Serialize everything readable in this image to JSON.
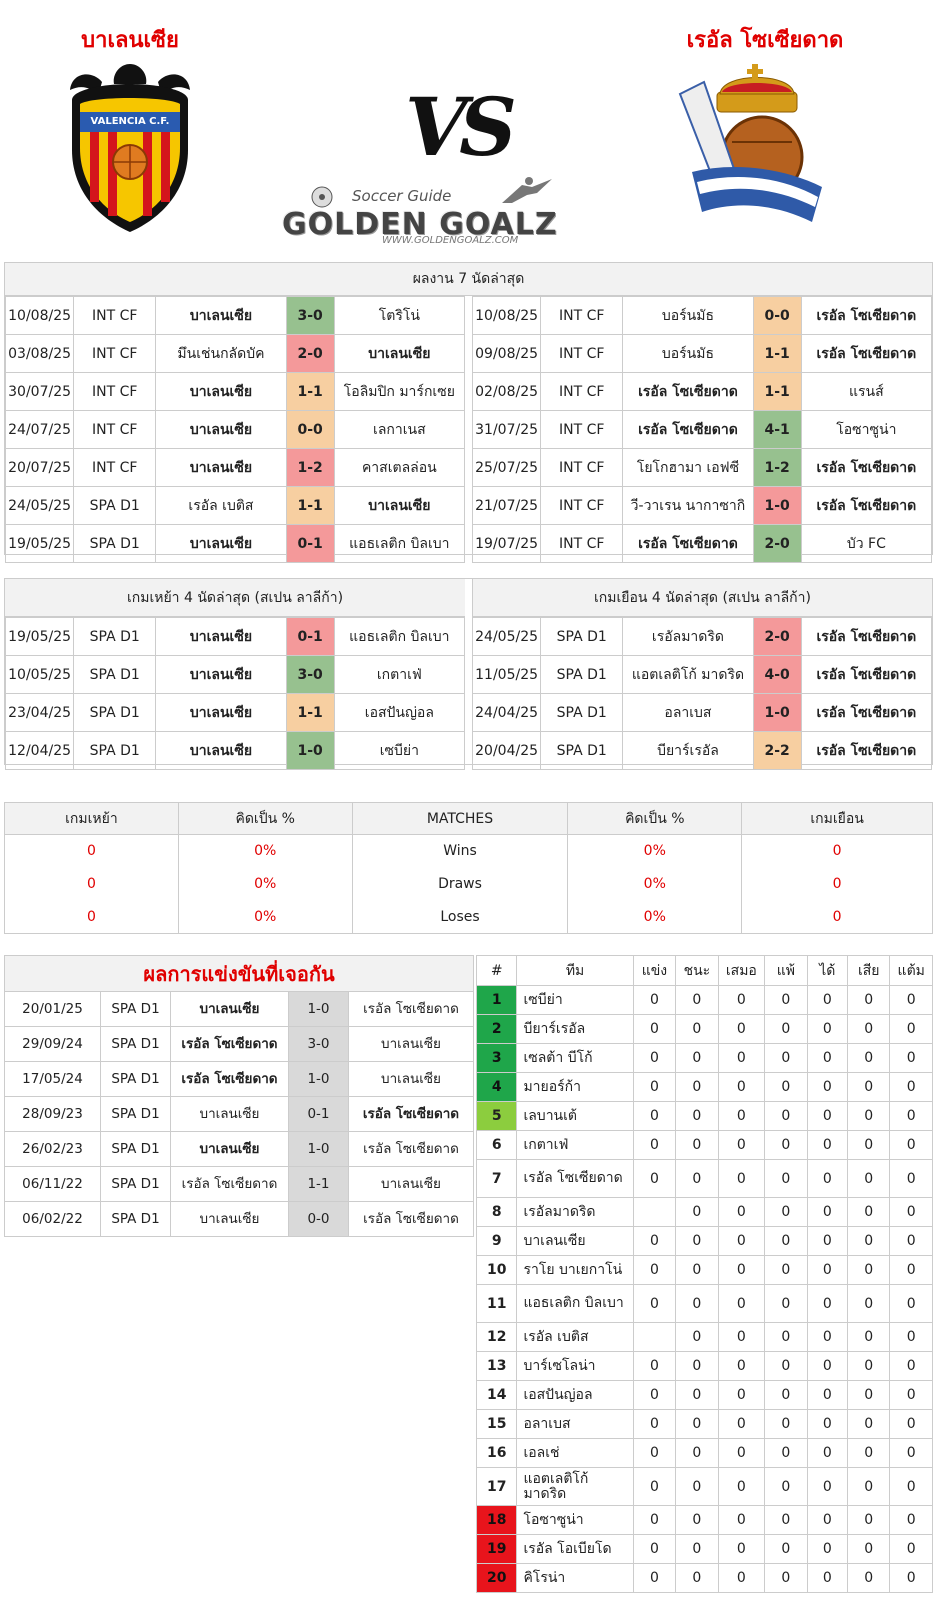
{
  "header": {
    "home_team": "บาเลนเซีย",
    "away_team": "เรอัล โซเซียดาด",
    "vs": "VS",
    "brand_tagline": "Soccer Guide",
    "brand_name": "GOLDEN GOALZ",
    "brand_url": "WWW.GOLDENGOALZ.COM",
    "home_crest_text": "VALENCIA C.F."
  },
  "last7": {
    "title": "ผลงาน 7 นัดล่าสุด",
    "home": [
      {
        "date": "10/08/25",
        "comp": "INT CF",
        "home": "บาเลนเซีย",
        "score": "3-0",
        "away": "โตริโน่",
        "res": "win",
        "bold": "home"
      },
      {
        "date": "03/08/25",
        "comp": "INT CF",
        "home": "มึนเช่นกลัดบัค",
        "score": "2-0",
        "away": "บาเลนเซีย",
        "res": "loss",
        "bold": "away"
      },
      {
        "date": "30/07/25",
        "comp": "INT CF",
        "home": "บาเลนเซีย",
        "score": "1-1",
        "away": "โอลิมปิก มาร์กเซย",
        "res": "draw",
        "bold": "home"
      },
      {
        "date": "24/07/25",
        "comp": "INT CF",
        "home": "บาเลนเซีย",
        "score": "0-0",
        "away": "เลกาเนส",
        "res": "draw",
        "bold": "home"
      },
      {
        "date": "20/07/25",
        "comp": "INT CF",
        "home": "บาเลนเซีย",
        "score": "1-2",
        "away": "คาสเตลล่อน",
        "res": "loss",
        "bold": "home"
      },
      {
        "date": "24/05/25",
        "comp": "SPA D1",
        "home": "เรอัล เบติส",
        "score": "1-1",
        "away": "บาเลนเซีย",
        "res": "draw",
        "bold": "away"
      },
      {
        "date": "19/05/25",
        "comp": "SPA D1",
        "home": "บาเลนเซีย",
        "score": "0-1",
        "away": "แอธเลติก บิลเบา",
        "res": "loss",
        "bold": "home"
      }
    ],
    "away": [
      {
        "date": "10/08/25",
        "comp": "INT CF",
        "home": "บอร์นมัธ",
        "score": "0-0",
        "away": "เรอัล โซเซียดาด",
        "res": "draw",
        "bold": "away"
      },
      {
        "date": "09/08/25",
        "comp": "INT CF",
        "home": "บอร์นมัธ",
        "score": "1-1",
        "away": "เรอัล โซเซียดาด",
        "res": "draw",
        "bold": "away"
      },
      {
        "date": "02/08/25",
        "comp": "INT CF",
        "home": "เรอัล โซเซียดาด",
        "score": "1-1",
        "away": "แรนส์",
        "res": "draw",
        "bold": "home"
      },
      {
        "date": "31/07/25",
        "comp": "INT CF",
        "home": "เรอัล โซเซียดาด",
        "score": "4-1",
        "away": "โอซาซูน่า",
        "res": "win",
        "bold": "home"
      },
      {
        "date": "25/07/25",
        "comp": "INT CF",
        "home": "โยโกฮามา เอฟซี",
        "score": "1-2",
        "away": "เรอัล โซเซียดาด",
        "res": "win",
        "bold": "away"
      },
      {
        "date": "21/07/25",
        "comp": "INT CF",
        "home": "วี-วาเรน นากาซากิ",
        "score": "1-0",
        "away": "เรอัล โซเซียดาด",
        "res": "loss",
        "bold": "away"
      },
      {
        "date": "19/07/25",
        "comp": "INT CF",
        "home": "เรอัล โซเซียดาด",
        "score": "2-0",
        "away": "บัว FC",
        "res": "win",
        "bold": "home"
      }
    ]
  },
  "last4": {
    "home_title": "เกมเหย้า 4 นัดล่าสุด (สเปน ลาลีก้า)",
    "away_title": "เกมเยือน 4 นัดล่าสุด (สเปน ลาลีก้า)",
    "home": [
      {
        "date": "19/05/25",
        "comp": "SPA D1",
        "home": "บาเลนเซีย",
        "score": "0-1",
        "away": "แอธเลติก บิลเบา",
        "res": "loss",
        "bold": "home"
      },
      {
        "date": "10/05/25",
        "comp": "SPA D1",
        "home": "บาเลนเซีย",
        "score": "3-0",
        "away": "เกตาเฟ่",
        "res": "win",
        "bold": "home"
      },
      {
        "date": "23/04/25",
        "comp": "SPA D1",
        "home": "บาเลนเซีย",
        "score": "1-1",
        "away": "เอสปันญ่อล",
        "res": "draw",
        "bold": "home"
      },
      {
        "date": "12/04/25",
        "comp": "SPA D1",
        "home": "บาเลนเซีย",
        "score": "1-0",
        "away": "เซบีย่า",
        "res": "win",
        "bold": "home"
      }
    ],
    "away": [
      {
        "date": "24/05/25",
        "comp": "SPA D1",
        "home": "เรอัลมาดริด",
        "score": "2-0",
        "away": "เรอัล โซเซียดาด",
        "res": "loss",
        "bold": "away"
      },
      {
        "date": "11/05/25",
        "comp": "SPA D1",
        "home": "แอตเลติโก้ มาดริด",
        "score": "4-0",
        "away": "เรอัล โซเซียดาด",
        "res": "loss",
        "bold": "away"
      },
      {
        "date": "24/04/25",
        "comp": "SPA D1",
        "home": "อลาเบส",
        "score": "1-0",
        "away": "เรอัล โซเซียดาด",
        "res": "loss",
        "bold": "away"
      },
      {
        "date": "20/04/25",
        "comp": "SPA D1",
        "home": "บียาร์เรอัล",
        "score": "2-2",
        "away": "เรอัล โซเซียดาด",
        "res": "draw",
        "bold": "away"
      }
    ]
  },
  "stats": {
    "headers": [
      "เกมเหย้า",
      "คิดเป็น %",
      "MATCHES",
      "คิดเป็น %",
      "เกมเยือน"
    ],
    "rows": [
      {
        "home": "0",
        "home_pct": "0%",
        "label": "Wins",
        "away_pct": "0%",
        "away": "0"
      },
      {
        "home": "0",
        "home_pct": "0%",
        "label": "Draws",
        "away_pct": "0%",
        "away": "0"
      },
      {
        "home": "0",
        "home_pct": "0%",
        "label": "Loses",
        "away_pct": "0%",
        "away": "0"
      }
    ]
  },
  "h2h": {
    "title": "ผลการแข่งขันที่เจอกัน",
    "rows": [
      {
        "date": "20/01/25",
        "comp": "SPA D1",
        "home": "บาเลนเซีย",
        "score": "1-0",
        "away": "เรอัล โซเซียดาด",
        "bold": "home"
      },
      {
        "date": "29/09/24",
        "comp": "SPA D1",
        "home": "เรอัล โซเซียดาด",
        "score": "3-0",
        "away": "บาเลนเซีย",
        "bold": "home"
      },
      {
        "date": "17/05/24",
        "comp": "SPA D1",
        "home": "เรอัล โซเซียดาด",
        "score": "1-0",
        "away": "บาเลนเซีย",
        "bold": "home"
      },
      {
        "date": "28/09/23",
        "comp": "SPA D1",
        "home": "บาเลนเซีย",
        "score": "0-1",
        "away": "เรอัล โซเซียดาด",
        "bold": "away"
      },
      {
        "date": "26/02/23",
        "comp": "SPA D1",
        "home": "บาเลนเซีย",
        "score": "1-0",
        "away": "เรอัล โซเซียดาด",
        "bold": "home"
      },
      {
        "date": "06/11/22",
        "comp": "SPA D1",
        "home": "เรอัล โซเซียดาด",
        "score": "1-1",
        "away": "บาเลนเซีย",
        "bold": ""
      },
      {
        "date": "06/02/22",
        "comp": "SPA D1",
        "home": "บาเลนเซีย",
        "score": "0-0",
        "away": "เรอัล โซเซียดาด",
        "bold": ""
      }
    ]
  },
  "standings": {
    "headers": [
      "#",
      "ทีม",
      "แข่ง",
      "ชนะ",
      "เสมอ",
      "แพ้",
      "ได้",
      "เสีย",
      "แต้ม"
    ],
    "rows": [
      {
        "rank": "1",
        "team": "เซบีย่า",
        "p": "0",
        "w": "0",
        "d": "0",
        "l": "0",
        "gf": "0",
        "ga": "0",
        "pts": "0",
        "zone": "g"
      },
      {
        "rank": "2",
        "team": "บียาร์เรอัล",
        "p": "0",
        "w": "0",
        "d": "0",
        "l": "0",
        "gf": "0",
        "ga": "0",
        "pts": "0",
        "zone": "g"
      },
      {
        "rank": "3",
        "team": "เซลต้า บีโก้",
        "p": "0",
        "w": "0",
        "d": "0",
        "l": "0",
        "gf": "0",
        "ga": "0",
        "pts": "0",
        "zone": "g"
      },
      {
        "rank": "4",
        "team": "มายอร์ก้า",
        "p": "0",
        "w": "0",
        "d": "0",
        "l": "0",
        "gf": "0",
        "ga": "0",
        "pts": "0",
        "zone": "g"
      },
      {
        "rank": "5",
        "team": "เลบานเต้",
        "p": "0",
        "w": "0",
        "d": "0",
        "l": "0",
        "gf": "0",
        "ga": "0",
        "pts": "0",
        "zone": "lg"
      },
      {
        "rank": "6",
        "team": "เกตาเฟ่",
        "p": "0",
        "w": "0",
        "d": "0",
        "l": "0",
        "gf": "0",
        "ga": "0",
        "pts": "0",
        "zone": ""
      },
      {
        "rank": "7",
        "team": "เรอัล โซเซียดาด",
        "p": "0",
        "w": "0",
        "d": "0",
        "l": "0",
        "gf": "0",
        "ga": "0",
        "pts": "0",
        "zone": "",
        "tall": true
      },
      {
        "rank": "8",
        "team": "เรอัลมาดริด",
        "p": "",
        "w": "0",
        "d": "0",
        "l": "0",
        "gf": "0",
        "ga": "0",
        "pts": "0",
        "zone": ""
      },
      {
        "rank": "9",
        "team": "บาเลนเซีย",
        "p": "0",
        "w": "0",
        "d": "0",
        "l": "0",
        "gf": "0",
        "ga": "0",
        "pts": "0",
        "zone": ""
      },
      {
        "rank": "10",
        "team": "ราโย บาเยกาโน่",
        "p": "0",
        "w": "0",
        "d": "0",
        "l": "0",
        "gf": "0",
        "ga": "0",
        "pts": "0",
        "zone": ""
      },
      {
        "rank": "11",
        "team": "แอธเลติก บิลเบา",
        "p": "0",
        "w": "0",
        "d": "0",
        "l": "0",
        "gf": "0",
        "ga": "0",
        "pts": "0",
        "zone": "",
        "tall": true
      },
      {
        "rank": "12",
        "team": "เรอัล เบติส",
        "p": "",
        "w": "0",
        "d": "0",
        "l": "0",
        "gf": "0",
        "ga": "0",
        "pts": "0",
        "zone": ""
      },
      {
        "rank": "13",
        "team": "บาร์เซโลน่า",
        "p": "0",
        "w": "0",
        "d": "0",
        "l": "0",
        "gf": "0",
        "ga": "0",
        "pts": "0",
        "zone": ""
      },
      {
        "rank": "14",
        "team": "เอสปันญ่อล",
        "p": "0",
        "w": "0",
        "d": "0",
        "l": "0",
        "gf": "0",
        "ga": "0",
        "pts": "0",
        "zone": ""
      },
      {
        "rank": "15",
        "team": "อลาเบส",
        "p": "0",
        "w": "0",
        "d": "0",
        "l": "0",
        "gf": "0",
        "ga": "0",
        "pts": "0",
        "zone": ""
      },
      {
        "rank": "16",
        "team": "เอลเช่",
        "p": "0",
        "w": "0",
        "d": "0",
        "l": "0",
        "gf": "0",
        "ga": "0",
        "pts": "0",
        "zone": ""
      },
      {
        "rank": "17",
        "team": "แอตเลติโก้ มาดริด",
        "p": "0",
        "w": "0",
        "d": "0",
        "l": "0",
        "gf": "0",
        "ga": "0",
        "pts": "0",
        "zone": "",
        "tall": true
      },
      {
        "rank": "18",
        "team": "โอซาซูน่า",
        "p": "0",
        "w": "0",
        "d": "0",
        "l": "0",
        "gf": "0",
        "ga": "0",
        "pts": "0",
        "zone": "r"
      },
      {
        "rank": "19",
        "team": "เรอัล โอเบียโด",
        "p": "0",
        "w": "0",
        "d": "0",
        "l": "0",
        "gf": "0",
        "ga": "0",
        "pts": "0",
        "zone": "r"
      },
      {
        "rank": "20",
        "team": "คิโรน่า",
        "p": "0",
        "w": "0",
        "d": "0",
        "l": "0",
        "gf": "0",
        "ga": "0",
        "pts": "0",
        "zone": "r"
      }
    ]
  },
  "colors": {
    "accent_red": "#e00000",
    "win": "#97c18f",
    "draw": "#f7cfa1",
    "loss": "#f4999a",
    "zone_green": "#1fa64a",
    "zone_lightgreen": "#8ccd3e",
    "zone_red": "#e8141c"
  }
}
